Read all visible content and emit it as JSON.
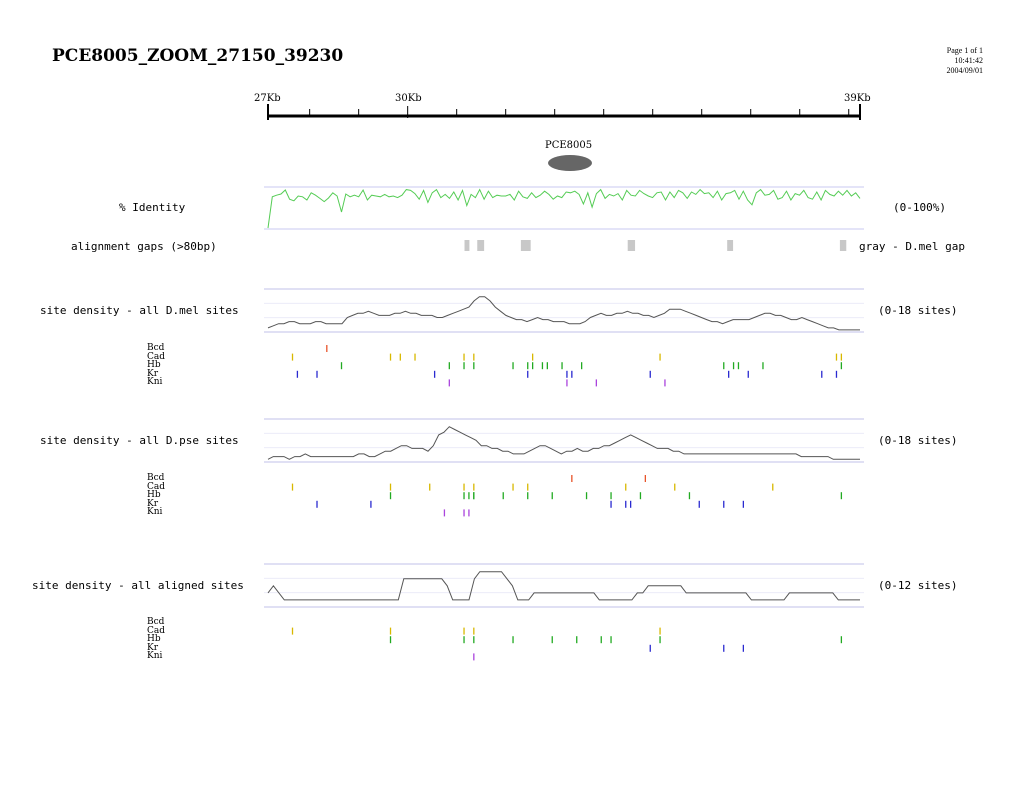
{
  "header": {
    "title": "PCE8005_ZOOM_27150_39230",
    "page": "Page 1 of 1",
    "time": "10:41:42",
    "date": "2004/09/01"
  },
  "ruler": {
    "start_label": "27Kb",
    "mid_label": "30Kb",
    "end_label": "39Kb",
    "start_kb": 27.15,
    "end_kb": 39.23,
    "mid_kb": 30
  },
  "element": {
    "label": "PCE8005",
    "color": "#666666"
  },
  "identity": {
    "label": "% Identity",
    "range": "(0-100%)",
    "color": "#55cc55",
    "values": [
      0,
      78,
      82,
      85,
      95,
      72,
      68,
      80,
      78,
      70,
      88,
      82,
      74,
      66,
      75,
      88,
      80,
      40,
      85,
      78,
      82,
      78,
      95,
      70,
      82,
      80,
      78,
      84,
      78,
      80,
      76,
      82,
      96,
      94,
      86,
      72,
      94,
      64,
      88,
      96,
      76,
      84,
      74,
      90,
      70,
      94,
      56,
      84,
      76,
      96,
      72,
      92,
      76,
      82,
      80,
      80,
      84,
      70,
      92,
      78,
      74,
      88,
      76,
      82,
      92,
      84,
      72,
      80,
      76,
      90,
      88,
      92,
      84,
      60,
      88,
      52,
      86,
      96,
      74,
      84,
      80,
      86,
      70,
      94,
      82,
      80,
      94,
      86,
      80,
      76,
      88,
      90,
      70,
      90,
      76,
      94,
      88,
      74,
      90,
      84,
      96,
      86,
      88,
      76,
      92,
      70,
      86,
      88,
      94,
      72,
      92,
      70,
      58,
      88,
      96,
      82,
      84,
      94,
      72,
      76,
      92,
      70,
      86,
      82,
      94,
      76,
      72,
      90,
      70,
      94,
      84,
      80,
      92,
      82,
      94,
      80,
      88,
      74
    ]
  },
  "gaps": {
    "label": "alignment gaps (>80bp)",
    "legend": "gray - D.mel gap",
    "color": "#c8c8c8",
    "regions_kb": [
      [
        31.16,
        31.26
      ],
      [
        31.42,
        31.56
      ],
      [
        32.31,
        32.51
      ],
      [
        34.49,
        34.64
      ],
      [
        36.52,
        36.64
      ],
      [
        38.82,
        38.95
      ]
    ]
  },
  "tracks": [
    {
      "label": "site density - all D.mel sites",
      "range": "(0-18 sites)",
      "density": [
        2,
        3,
        4,
        4,
        5,
        5,
        4,
        4,
        4,
        5,
        5,
        4,
        4,
        4,
        4,
        7,
        8,
        9,
        9,
        10,
        9,
        8,
        8,
        8,
        9,
        9,
        10,
        9,
        9,
        8,
        8,
        8,
        7,
        7,
        8,
        9,
        10,
        11,
        12,
        15,
        17,
        17,
        15,
        12,
        10,
        8,
        7,
        6,
        6,
        5,
        6,
        7,
        6,
        6,
        5,
        5,
        5,
        4,
        4,
        4,
        5,
        7,
        8,
        9,
        8,
        8,
        9,
        9,
        10,
        9,
        9,
        8,
        8,
        7,
        8,
        9,
        11,
        11,
        11,
        10,
        9,
        8,
        7,
        6,
        5,
        5,
        4,
        5,
        6,
        6,
        6,
        6,
        7,
        8,
        9,
        9,
        8,
        8,
        7,
        6,
        6,
        7,
        6,
        5,
        4,
        3,
        2,
        2,
        1,
        1,
        1,
        1,
        1
      ],
      "motifs": [
        {
          "name": "Bcd",
          "color": "#e8542a",
          "kb": [
            28.35
          ]
        },
        {
          "name": "Cad",
          "color": "#d8b800",
          "kb": [
            27.65,
            29.65,
            29.85,
            30.15,
            31.15,
            31.35,
            32.55,
            35.15,
            38.75,
            38.85
          ]
        },
        {
          "name": "Hb",
          "color": "#22aa22",
          "kb": [
            28.65,
            30.85,
            31.15,
            31.35,
            32.15,
            32.45,
            32.55,
            32.75,
            32.85,
            33.15,
            33.55,
            36.45,
            36.65,
            36.75,
            37.25,
            38.85
          ]
        },
        {
          "name": "Kr",
          "color": "#2a2ad0",
          "kb": [
            27.75,
            28.15,
            30.55,
            32.45,
            33.25,
            33.35,
            34.95,
            36.55,
            36.95,
            38.45,
            38.75
          ]
        },
        {
          "name": "Kni",
          "color": "#aa44dd",
          "kb": [
            30.85,
            33.25,
            33.85,
            35.25
          ]
        }
      ]
    },
    {
      "label": "site density - all D.pse sites",
      "range": "(0-18 sites)",
      "density": [
        1,
        2,
        2,
        2,
        1,
        2,
        2,
        3,
        2,
        2,
        2,
        2,
        2,
        2,
        2,
        2,
        2,
        3,
        3,
        2,
        2,
        3,
        4,
        4,
        5,
        6,
        6,
        5,
        5,
        5,
        4,
        6,
        10,
        11,
        13,
        12,
        11,
        10,
        9,
        8,
        6,
        6,
        5,
        5,
        4,
        4,
        3,
        3,
        3,
        4,
        5,
        6,
        6,
        5,
        4,
        3,
        4,
        4,
        5,
        4,
        4,
        5,
        5,
        6,
        6,
        7,
        8,
        9,
        10,
        9,
        8,
        7,
        6,
        5,
        5,
        5,
        4,
        4,
        3,
        3,
        3,
        3,
        3,
        3,
        3,
        3,
        3,
        3,
        3,
        3,
        3,
        3,
        3,
        3,
        3,
        3,
        3,
        3,
        3,
        3,
        2,
        2,
        2,
        2,
        2,
        2,
        1,
        1,
        1,
        1,
        1,
        1
      ],
      "motifs": [
        {
          "name": "Bcd",
          "color": "#e8542a",
          "kb": [
            33.35,
            34.85
          ]
        },
        {
          "name": "Cad",
          "color": "#d8b800",
          "kb": [
            27.65,
            29.65,
            30.45,
            31.15,
            31.35,
            32.15,
            32.45,
            34.45,
            35.45,
            37.45
          ]
        },
        {
          "name": "Hb",
          "color": "#22aa22",
          "kb": [
            29.65,
            31.15,
            31.25,
            31.35,
            31.35,
            31.95,
            32.45,
            32.95,
            33.65,
            34.15,
            34.75,
            35.75,
            38.85
          ]
        },
        {
          "name": "Kr",
          "color": "#2a2ad0",
          "kb": [
            28.15,
            29.25,
            34.15,
            34.45,
            34.55,
            35.95,
            36.45,
            36.85
          ]
        },
        {
          "name": "Kni",
          "color": "#aa44dd",
          "kb": [
            30.75,
            31.15,
            31.25
          ]
        }
      ]
    },
    {
      "label": "site density - all aligned sites",
      "range": "(0-12 sites)",
      "density": [
        2,
        3,
        2,
        1,
        1,
        1,
        1,
        1,
        1,
        1,
        1,
        1,
        1,
        1,
        1,
        1,
        1,
        1,
        1,
        1,
        1,
        1,
        1,
        1,
        1,
        4,
        4,
        4,
        4,
        4,
        4,
        4,
        4,
        3,
        1,
        1,
        1,
        1,
        4,
        5,
        5,
        5,
        5,
        5,
        4,
        3,
        1,
        1,
        1,
        2,
        2,
        2,
        2,
        2,
        2,
        2,
        2,
        2,
        2,
        2,
        2,
        1,
        1,
        1,
        1,
        1,
        1,
        1,
        2,
        2,
        3,
        3,
        3,
        3,
        3,
        3,
        3,
        2,
        2,
        2,
        2,
        2,
        2,
        2,
        2,
        2,
        2,
        2,
        2,
        1,
        1,
        1,
        1,
        1,
        1,
        1,
        2,
        2,
        2,
        2,
        2,
        2,
        2,
        2,
        2,
        1,
        1,
        1,
        1,
        1
      ],
      "motifs": [
        {
          "name": "Bcd",
          "color": "#e8542a",
          "kb": []
        },
        {
          "name": "Cad",
          "color": "#d8b800",
          "kb": [
            27.65,
            29.65,
            31.15,
            31.35,
            35.15
          ]
        },
        {
          "name": "Hb",
          "color": "#22aa22",
          "kb": [
            29.65,
            31.15,
            31.35,
            32.15,
            32.95,
            33.45,
            33.95,
            34.15,
            35.15,
            38.85
          ]
        },
        {
          "name": "Kr",
          "color": "#2a2ad0",
          "kb": [
            34.95,
            36.45,
            36.85
          ]
        },
        {
          "name": "Kni",
          "color": "#aa44dd",
          "kb": [
            31.35
          ]
        }
      ]
    }
  ]
}
